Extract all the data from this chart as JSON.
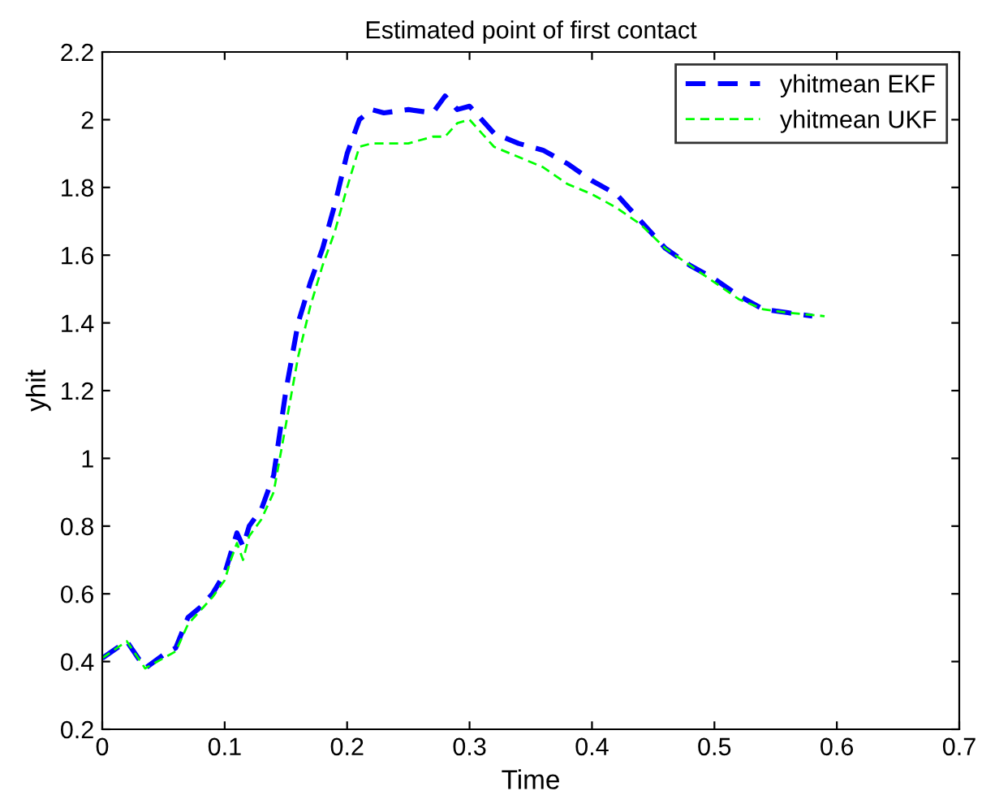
{
  "chart_data": {
    "type": "line",
    "title": "Estimated point of first contact",
    "xlabel": "Time",
    "ylabel": "yhit",
    "x": [
      0,
      0.02,
      0.035,
      0.05,
      0.06,
      0.07,
      0.08,
      0.09,
      0.1,
      0.105,
      0.11,
      0.115,
      0.12,
      0.13,
      0.14,
      0.15,
      0.16,
      0.17,
      0.18,
      0.19,
      0.2,
      0.21,
      0.22,
      0.23,
      0.25,
      0.27,
      0.28,
      0.29,
      0.3,
      0.31,
      0.32,
      0.34,
      0.36,
      0.38,
      0.4,
      0.42,
      0.44,
      0.46,
      0.48,
      0.5,
      0.52,
      0.54,
      0.56,
      0.58
    ],
    "series": [
      {
        "name": "yhitmean EKF",
        "color": "#0000ff",
        "values": [
          0.41,
          0.46,
          0.38,
          0.42,
          0.44,
          0.53,
          0.56,
          0.6,
          0.66,
          0.72,
          0.78,
          0.74,
          0.8,
          0.85,
          0.95,
          1.2,
          1.4,
          1.52,
          1.62,
          1.75,
          1.9,
          2.0,
          2.03,
          2.02,
          2.03,
          2.02,
          2.07,
          2.03,
          2.04,
          2.0,
          1.96,
          1.93,
          1.91,
          1.87,
          1.82,
          1.78,
          1.7,
          1.62,
          1.57,
          1.53,
          1.48,
          1.44,
          1.43,
          1.42
        ]
      },
      {
        "name": "yhitmean UKF",
        "color": "#00ff00",
        "x": [
          0,
          0.02,
          0.035,
          0.05,
          0.06,
          0.07,
          0.08,
          0.09,
          0.1,
          0.105,
          0.11,
          0.115,
          0.12,
          0.13,
          0.14,
          0.15,
          0.16,
          0.17,
          0.18,
          0.19,
          0.2,
          0.21,
          0.22,
          0.23,
          0.25,
          0.27,
          0.28,
          0.29,
          0.3,
          0.31,
          0.32,
          0.34,
          0.36,
          0.38,
          0.4,
          0.42,
          0.44,
          0.46,
          0.48,
          0.5,
          0.52,
          0.54,
          0.56,
          0.59
        ],
        "values": [
          0.41,
          0.46,
          0.38,
          0.41,
          0.43,
          0.51,
          0.55,
          0.59,
          0.64,
          0.7,
          0.75,
          0.7,
          0.77,
          0.82,
          0.9,
          1.1,
          1.3,
          1.45,
          1.57,
          1.67,
          1.8,
          1.92,
          1.93,
          1.93,
          1.93,
          1.95,
          1.95,
          1.99,
          2.0,
          1.96,
          1.92,
          1.89,
          1.86,
          1.81,
          1.78,
          1.74,
          1.69,
          1.62,
          1.57,
          1.52,
          1.47,
          1.44,
          1.43,
          1.42
        ]
      }
    ],
    "xlim": [
      0,
      0.7
    ],
    "xticks": [
      0,
      0.1,
      0.2,
      0.3,
      0.4,
      0.5,
      0.6,
      0.7
    ],
    "ylim": [
      0.2,
      2.2
    ],
    "yticks": [
      0.2,
      0.4,
      0.6,
      0.8,
      1,
      1.2,
      1.4,
      1.6,
      1.8,
      2,
      2.2
    ],
    "grid": false,
    "legend": "top right",
    "line_style": "dashed",
    "marker": "none"
  }
}
